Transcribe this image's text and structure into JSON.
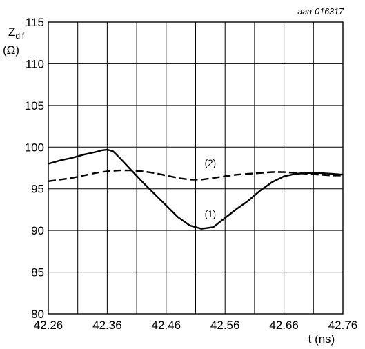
{
  "figure_id": "aaa-016317",
  "chart_data": {
    "type": "line",
    "xlabel": "t (ns)",
    "ylabel_main": "Z",
    "ylabel_sub": "dif",
    "ylabel_unit": "(Ω)",
    "xlim": [
      42.26,
      42.76
    ],
    "ylim": [
      80,
      115
    ],
    "x_ticks": [
      "42.26",
      "42.36",
      "42.46",
      "42.56",
      "42.66",
      "42.76"
    ],
    "y_ticks": [
      "80",
      "85",
      "90",
      "95",
      "100",
      "105",
      "110",
      "115"
    ],
    "x_grid_step": 0.05,
    "y_grid_step": 5,
    "grid": true,
    "series": [
      {
        "label": "(1)",
        "style": "solid",
        "label_at": [
          42.535,
          91.6
        ],
        "points": [
          [
            42.26,
            98.0
          ],
          [
            42.28,
            98.4
          ],
          [
            42.3,
            98.7
          ],
          [
            42.32,
            99.1
          ],
          [
            42.34,
            99.4
          ],
          [
            42.35,
            99.6
          ],
          [
            42.36,
            99.7
          ],
          [
            42.37,
            99.5
          ],
          [
            42.38,
            98.8
          ],
          [
            42.4,
            97.3
          ],
          [
            42.42,
            95.8
          ],
          [
            42.44,
            94.4
          ],
          [
            42.46,
            93.0
          ],
          [
            42.48,
            91.6
          ],
          [
            42.5,
            90.6
          ],
          [
            42.52,
            90.2
          ],
          [
            42.54,
            90.4
          ],
          [
            42.56,
            91.5
          ],
          [
            42.58,
            92.6
          ],
          [
            42.6,
            93.6
          ],
          [
            42.62,
            94.8
          ],
          [
            42.64,
            95.8
          ],
          [
            42.66,
            96.5
          ],
          [
            42.68,
            96.8
          ],
          [
            42.7,
            96.9
          ],
          [
            42.72,
            96.9
          ],
          [
            42.74,
            96.8
          ],
          [
            42.76,
            96.7
          ]
        ]
      },
      {
        "label": "(2)",
        "style": "dashed",
        "label_at": [
          42.535,
          97.7
        ],
        "points": [
          [
            42.26,
            95.9
          ],
          [
            42.28,
            96.1
          ],
          [
            42.3,
            96.3
          ],
          [
            42.32,
            96.6
          ],
          [
            42.34,
            96.9
          ],
          [
            42.36,
            97.1
          ],
          [
            42.38,
            97.2
          ],
          [
            42.4,
            97.2
          ],
          [
            42.42,
            97.1
          ],
          [
            42.44,
            96.9
          ],
          [
            42.46,
            96.6
          ],
          [
            42.48,
            96.3
          ],
          [
            42.5,
            96.1
          ],
          [
            42.52,
            96.1
          ],
          [
            42.54,
            96.3
          ],
          [
            42.56,
            96.5
          ],
          [
            42.58,
            96.7
          ],
          [
            42.6,
            96.8
          ],
          [
            42.62,
            96.9
          ],
          [
            42.64,
            97.0
          ],
          [
            42.66,
            97.0
          ],
          [
            42.68,
            96.9
          ],
          [
            42.7,
            96.8
          ],
          [
            42.72,
            96.7
          ],
          [
            42.74,
            96.6
          ],
          [
            42.76,
            96.6
          ]
        ]
      }
    ]
  }
}
